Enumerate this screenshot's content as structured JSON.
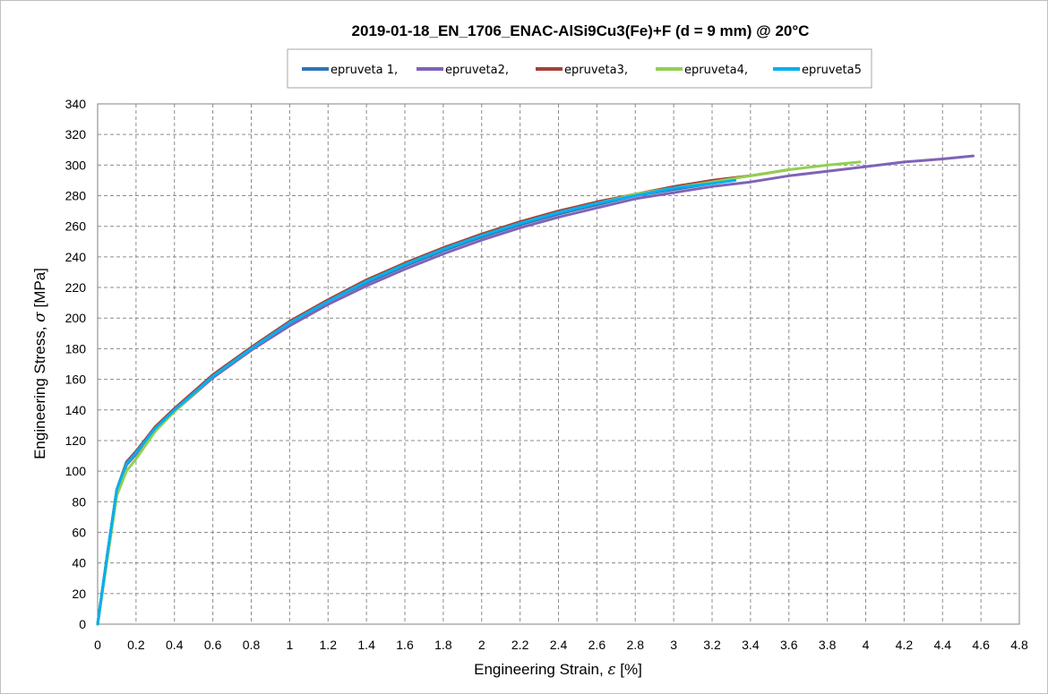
{
  "chart_data": {
    "type": "line",
    "title": "2019-01-18_EN_1706_ENAC-AlSi9Cu3(Fe)+F (d = 9 mm) @ 20°C",
    "xlabel_prefix": "Engineering Strain, ",
    "xlabel_symbol": "ε",
    "xlabel_suffix": " [%]",
    "ylabel_prefix": "Engineering Stress, ",
    "ylabel_symbol": "σ",
    "ylabel_suffix": " [MPa]",
    "xlim": [
      0,
      4.8
    ],
    "ylim": [
      0,
      340
    ],
    "x_ticks": [
      "0",
      "0.2",
      "0.4",
      "0.6",
      "0.8",
      "1",
      "1.2",
      "1.4",
      "1.6",
      "1.8",
      "2",
      "2.2",
      "2.4",
      "2.6",
      "2.8",
      "3",
      "3.2",
      "3.4",
      "3.6",
      "3.8",
      "4",
      "4.2",
      "4.4",
      "4.6",
      "4.8"
    ],
    "y_ticks": [
      "0",
      "20",
      "40",
      "60",
      "80",
      "100",
      "120",
      "140",
      "160",
      "180",
      "200",
      "220",
      "240",
      "260",
      "280",
      "300",
      "320",
      "340"
    ],
    "grid": true,
    "legend_position": "top-center",
    "series": [
      {
        "name": "epruveta 1,",
        "color": "#2e75b6",
        "x": [
          0,
          0.05,
          0.1,
          0.15,
          0.2,
          0.3,
          0.4,
          0.6,
          0.8,
          1.0,
          1.2,
          1.4,
          1.6,
          1.8,
          2.0,
          2.2,
          2.4,
          2.6,
          2.8,
          3.0,
          3.2,
          3.3
        ],
        "y": [
          0,
          45,
          88,
          105,
          112,
          128,
          140,
          162,
          180,
          196,
          211,
          223,
          234,
          244,
          253,
          261,
          268,
          274,
          280,
          284,
          288,
          290
        ]
      },
      {
        "name": "epruveta2,",
        "color": "#7e63b8",
        "x": [
          0,
          0.05,
          0.1,
          0.15,
          0.2,
          0.3,
          0.4,
          0.6,
          0.8,
          1.0,
          1.2,
          1.4,
          1.6,
          1.8,
          2.0,
          2.2,
          2.4,
          2.6,
          2.8,
          3.0,
          3.2,
          3.4,
          3.6,
          3.8,
          4.0,
          4.2,
          4.4,
          4.56
        ],
        "y": [
          0,
          44,
          87,
          104,
          111,
          127,
          139,
          161,
          179,
          195,
          209,
          221,
          232,
          242,
          251,
          259,
          266,
          272,
          278,
          282,
          286,
          289,
          293,
          296,
          299,
          302,
          304,
          306
        ]
      },
      {
        "name": "epruveta3,",
        "color": "#a5413b",
        "x": [
          0,
          0.05,
          0.1,
          0.15,
          0.2,
          0.3,
          0.4,
          0.6,
          0.8,
          1.0,
          1.2,
          1.4,
          1.6,
          1.8,
          2.0,
          2.2,
          2.4,
          2.6,
          2.8,
          3.0,
          3.2,
          3.4,
          3.6
        ],
        "y": [
          0,
          45,
          88,
          106,
          113,
          129,
          141,
          163,
          181,
          198,
          212,
          225,
          236,
          246,
          255,
          263,
          270,
          276,
          281,
          286,
          290,
          293,
          297
        ]
      },
      {
        "name": "epruveta4,",
        "color": "#92d050",
        "x": [
          0,
          0.05,
          0.1,
          0.15,
          0.2,
          0.3,
          0.4,
          0.6,
          0.8,
          1.0,
          1.2,
          1.4,
          1.6,
          1.8,
          2.0,
          2.2,
          2.4,
          2.6,
          2.8,
          3.0,
          3.2,
          3.4,
          3.6,
          3.8,
          3.97
        ],
        "y": [
          0,
          42,
          84,
          100,
          108,
          126,
          139,
          162,
          180,
          197,
          211,
          224,
          235,
          245,
          254,
          262,
          269,
          275,
          281,
          285,
          289,
          293,
          297,
          300,
          302
        ]
      },
      {
        "name": "epruveta5",
        "color": "#00b0f0",
        "x": [
          0,
          0.05,
          0.1,
          0.15,
          0.2,
          0.3,
          0.4,
          0.6,
          0.8,
          1.0,
          1.2,
          1.4,
          1.6,
          1.8,
          2.0,
          2.2,
          2.4,
          2.6,
          2.8,
          3.0,
          3.2,
          3.32
        ],
        "y": [
          0,
          45,
          88,
          105,
          112,
          128,
          140,
          162,
          180,
          197,
          211,
          224,
          235,
          245,
          254,
          262,
          269,
          275,
          280,
          285,
          288,
          290
        ]
      }
    ]
  }
}
